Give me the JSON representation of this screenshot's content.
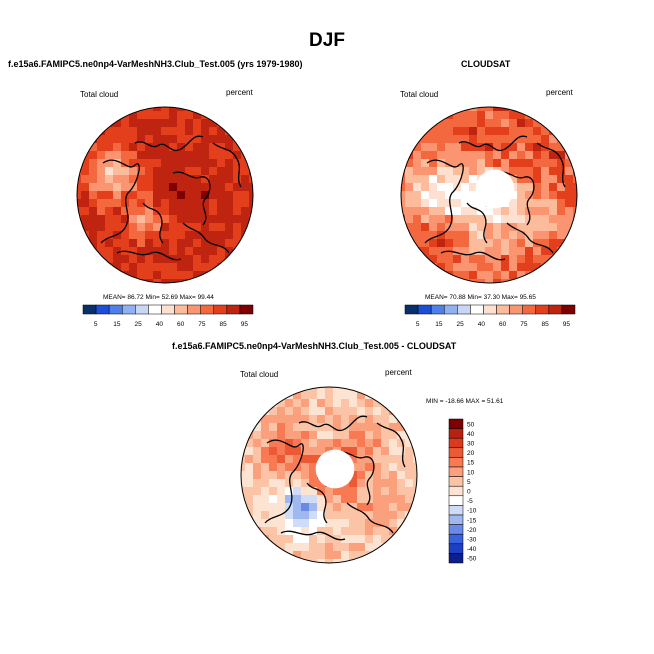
{
  "title": "DJF",
  "colors": {
    "seq": [
      "#08306b",
      "#1c4fd8",
      "#4f7fe8",
      "#8fb0f2",
      "#c8d7f7",
      "#ffffff",
      "#fde0cf",
      "#fcbb9b",
      "#fb9470",
      "#f4683f",
      "#e33f1c",
      "#bf2411",
      "#7f0000"
    ],
    "diff": [
      "#0c1f8c",
      "#1d3fc4",
      "#3b62de",
      "#6b8ae8",
      "#a0b8f0",
      "#cfdcf7",
      "#ffffff",
      "#fde3d2",
      "#fcc4a6",
      "#fba07c",
      "#f77a55",
      "#ec5a35",
      "#d93b1c",
      "#b82110",
      "#7f0000"
    ],
    "land": "#000000"
  },
  "chart_data": [
    {
      "type": "polar-stereographic-map",
      "panel_id": "model",
      "title": "f.e15a6.FAMIPC5.ne0np4-VarMeshNH3.Club_Test.005 (yrs 1979-1980)",
      "left_label": "Total cloud",
      "right_label": "percent",
      "stats": {
        "mean_label": "MEAN=",
        "mean": "86.72",
        "min_label": "Min=",
        "min": "52.69",
        "max_label": "Max=",
        "max": "99.44"
      },
      "colorbar": {
        "orientation": "horizontal",
        "levels": [
          "5",
          "15",
          "25",
          "40",
          "60",
          "75",
          "85",
          "95"
        ]
      },
      "polar_hole": false,
      "field": {
        "base": 85,
        "band": 5,
        "center": 92,
        "hole": null,
        "blobs": [
          [
            -0.55,
            -0.25,
            0.28,
            -20
          ],
          [
            -0.2,
            0.25,
            0.2,
            -15
          ],
          [
            0.35,
            0.05,
            0.22,
            8
          ],
          [
            -0.15,
            -0.55,
            0.25,
            6
          ]
        ]
      }
    },
    {
      "type": "polar-stereographic-map",
      "panel_id": "obs",
      "title": "CLOUDSAT",
      "left_label": "Total cloud",
      "right_label": "percent",
      "stats": {
        "mean_label": "MEAN=",
        "mean": "70.88",
        "min_label": "Min=",
        "min": "37.30",
        "max_label": "Max=",
        "max": "95.65"
      },
      "colorbar": {
        "orientation": "horizontal",
        "levels": [
          "5",
          "15",
          "25",
          "40",
          "60",
          "75",
          "85",
          "95"
        ]
      },
      "polar_hole": true,
      "field": {
        "base": 80,
        "band": 6,
        "center": 55,
        "hole": 0.22,
        "blobs": [
          [
            -0.55,
            0.0,
            0.4,
            -22
          ],
          [
            0.5,
            0.2,
            0.35,
            -12
          ],
          [
            0.0,
            0.55,
            0.3,
            -10
          ],
          [
            -0.6,
            0.45,
            0.25,
            8
          ]
        ]
      }
    },
    {
      "type": "polar-stereographic-map",
      "panel_id": "diff",
      "title": "f.e15a6.FAMIPC5.ne0np4-VarMeshNH3.Club_Test.005 - CLOUDSAT",
      "left_label": "Total cloud",
      "right_label": "percent",
      "stats_text": "MIN = -18.66 MAX = 51.61",
      "colorbar": {
        "orientation": "vertical",
        "levels": [
          "50",
          "40",
          "30",
          "20",
          "15",
          "10",
          "5",
          "0",
          "-5",
          "-10",
          "-15",
          "-20",
          "-30",
          "-40",
          "-50"
        ]
      },
      "polar_hole": true,
      "field": {
        "base": 6,
        "band": 5,
        "center": 30,
        "hole": 0.22,
        "blobs": [
          [
            -0.3,
            0.35,
            0.25,
            -22
          ],
          [
            0.35,
            -0.35,
            0.25,
            10
          ],
          [
            -0.5,
            -0.3,
            0.3,
            14
          ],
          [
            0.55,
            0.3,
            0.3,
            8
          ]
        ]
      }
    }
  ]
}
